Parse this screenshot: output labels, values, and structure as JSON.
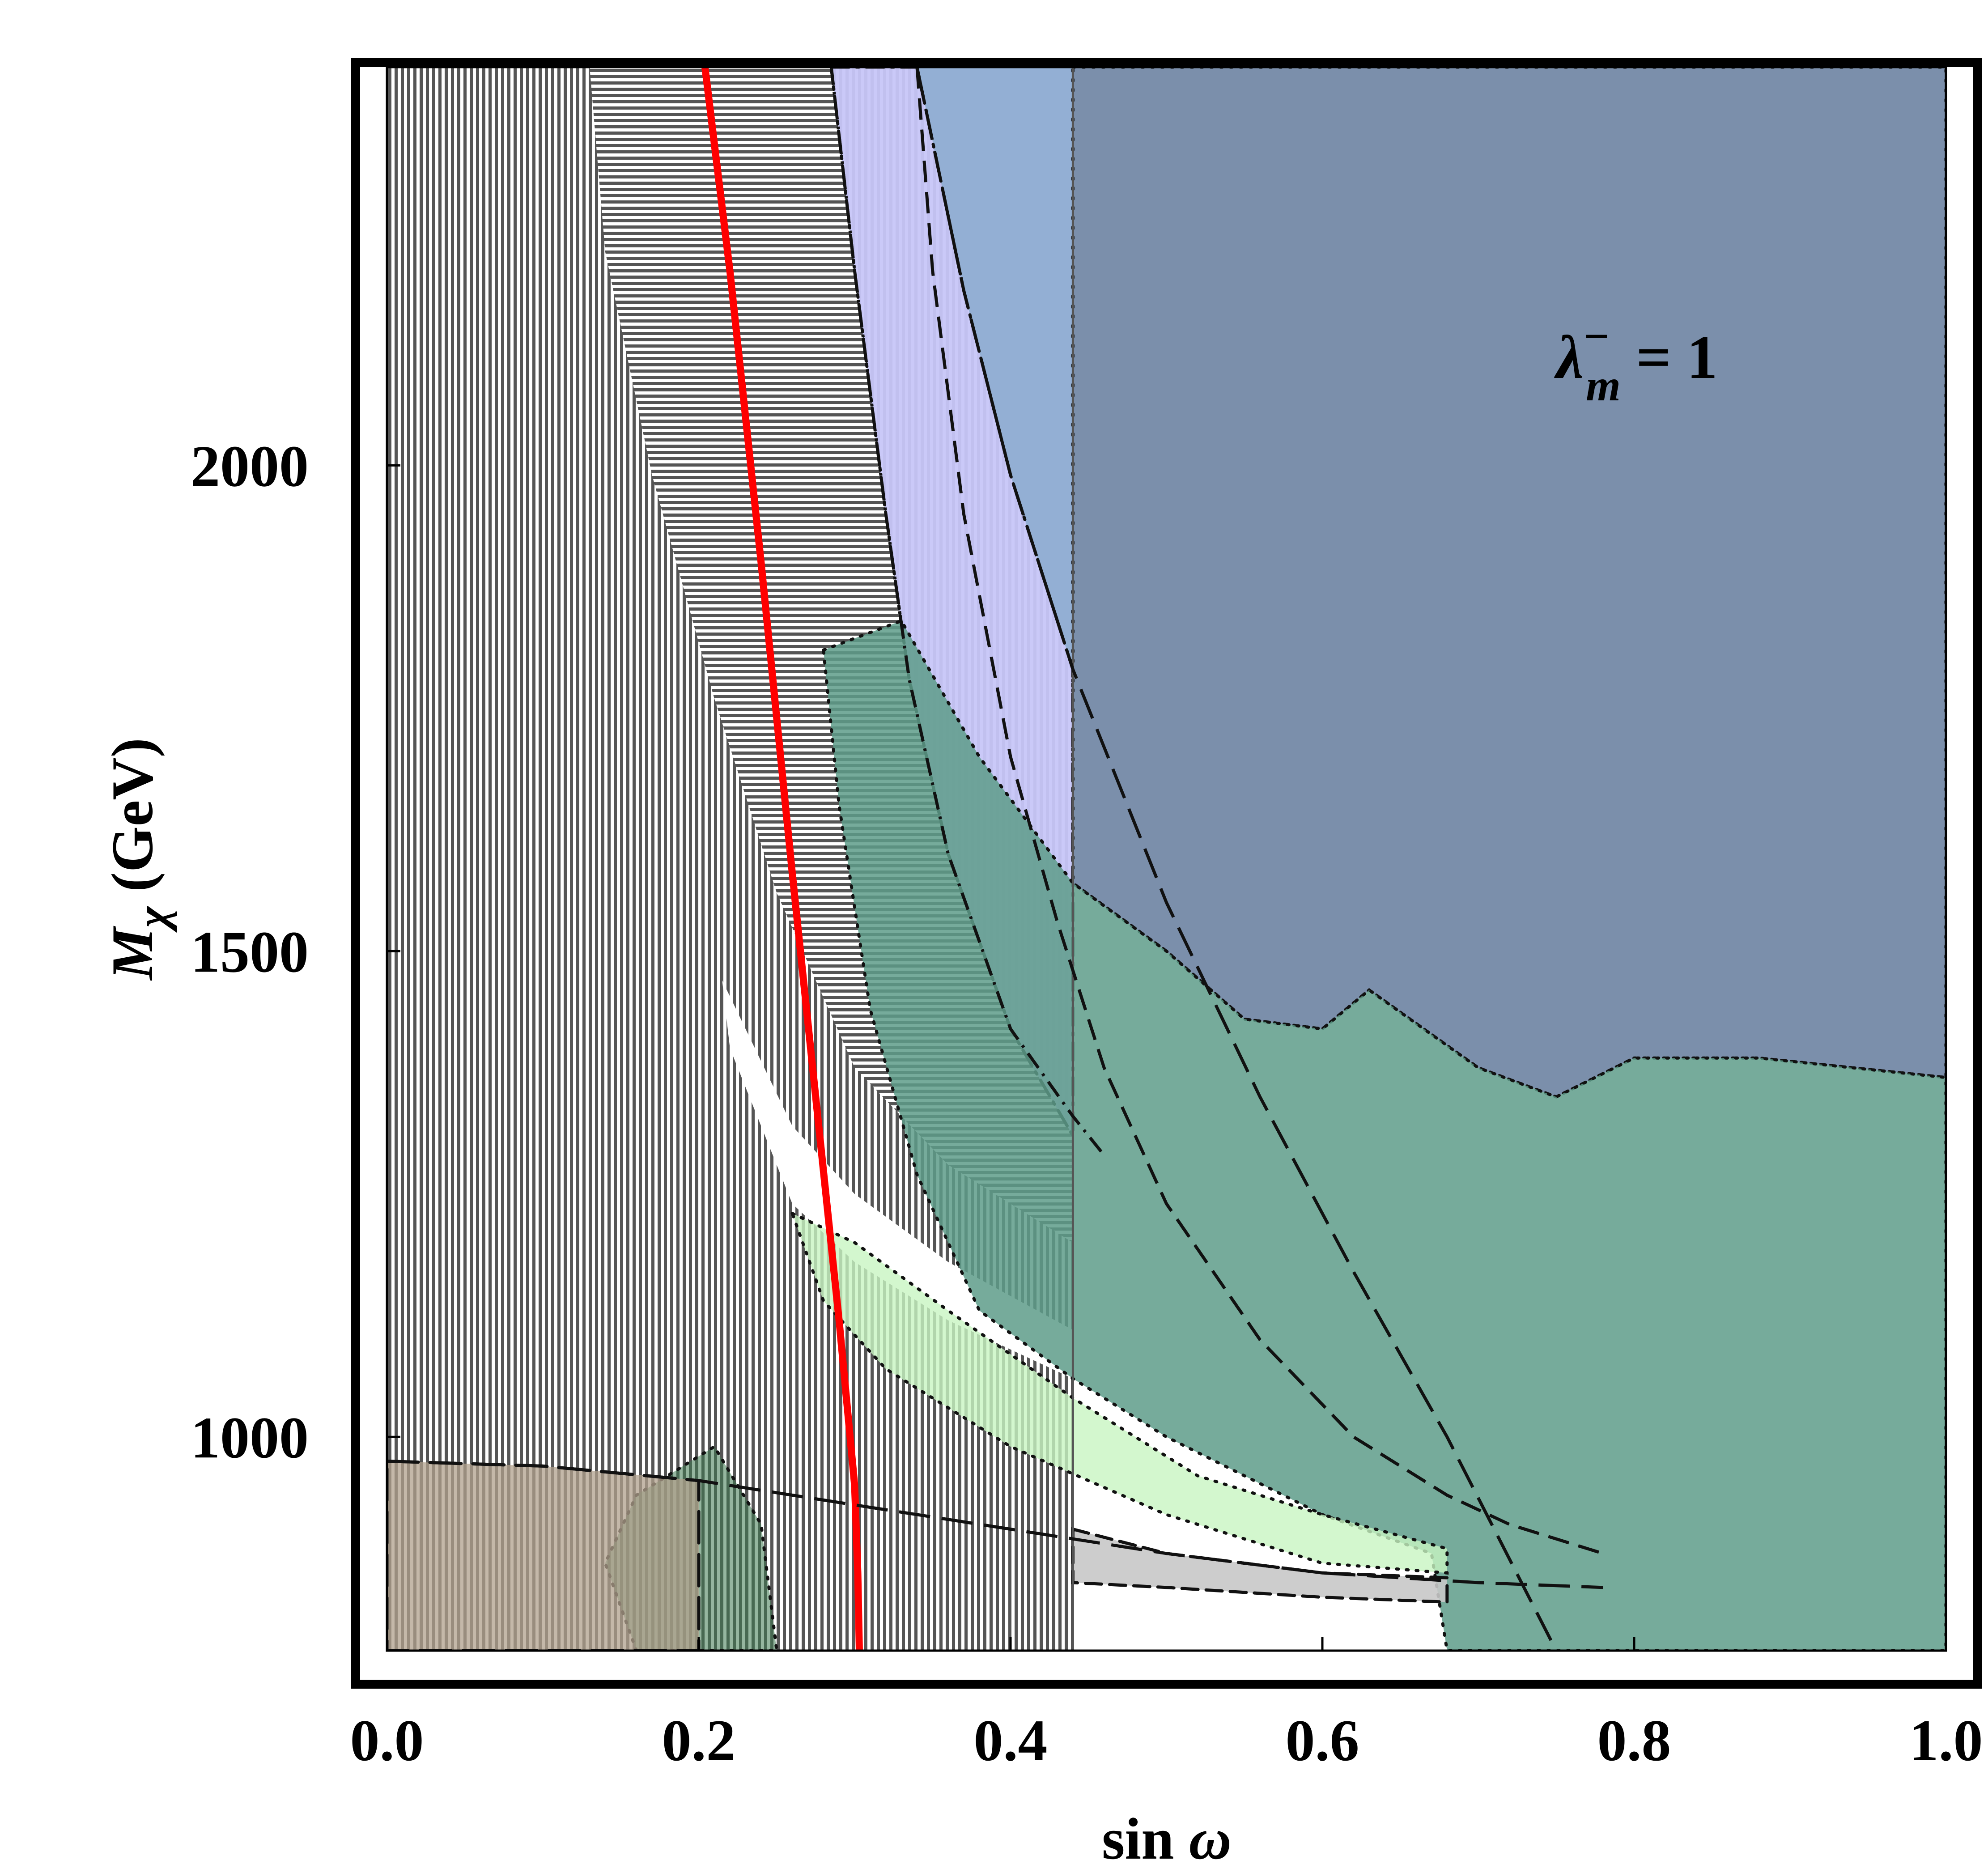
{
  "chart_data": {
    "type": "area",
    "title": "",
    "xlabel_main": "sin ",
    "xlabel_sym": "ω",
    "ylabel_main": "M",
    "ylabel_sub": "χ",
    "ylabel_unit": " (GeV)",
    "xlim": [
      0.0,
      1.0
    ],
    "ylim": [
      780,
      2410
    ],
    "x_ticks": [
      "0.0",
      "0.2",
      "0.4",
      "0.6",
      "0.8",
      "1.0"
    ],
    "x_tick_values": [
      0.0,
      0.2,
      0.4,
      0.6,
      0.8,
      1.0
    ],
    "y_ticks": [
      "1000",
      "1500",
      "2000"
    ],
    "y_tick_values": [
      1000,
      1500,
      2000
    ],
    "annotation": {
      "lambda": "λ",
      "sup": "−",
      "sub": "m",
      "rest": " = 1",
      "x": 0.75,
      "y": 2090
    },
    "grid": false,
    "legend": "none",
    "colors": {
      "hatch": "#555555",
      "blue_region": "#7b8fab",
      "light_blue": "#93afd4",
      "lavender": "#c7c6f8",
      "light_green": "#c8f5c2",
      "green_region": "#5e9c89",
      "dark_green": "#3e7a50",
      "brown": "#b0a08c",
      "gray": "#c8c8c8",
      "red_curve": "#ff0000"
    },
    "series": [
      {
        "id": "red-curve",
        "style": "solid-red",
        "points": [
          [
            0.204,
            2410
          ],
          [
            0.22,
            2200
          ],
          [
            0.24,
            1900
          ],
          [
            0.26,
            1580
          ],
          [
            0.275,
            1350
          ],
          [
            0.29,
            1120
          ],
          [
            0.3,
            950
          ],
          [
            0.302,
            860
          ],
          [
            0.303,
            780
          ]
        ]
      },
      {
        "id": "long-dash-curve",
        "style": "long-dash",
        "points": [
          [
            0.34,
            2410
          ],
          [
            0.37,
            2180
          ],
          [
            0.4,
            1990
          ],
          [
            0.44,
            1790
          ],
          [
            0.5,
            1550
          ],
          [
            0.56,
            1350
          ],
          [
            0.62,
            1170
          ],
          [
            0.68,
            1000
          ],
          [
            0.75,
            780
          ]
        ]
      },
      {
        "id": "mid-dash-curve",
        "style": "medium-dash",
        "points": [
          [
            0.34,
            2410
          ],
          [
            0.35,
            2200
          ],
          [
            0.37,
            1950
          ],
          [
            0.4,
            1700
          ],
          [
            0.43,
            1530
          ],
          [
            0.46,
            1380
          ],
          [
            0.5,
            1240
          ],
          [
            0.56,
            1100
          ],
          [
            0.62,
            1000
          ],
          [
            0.68,
            940
          ],
          [
            0.72,
            910
          ],
          [
            0.78,
            880
          ]
        ]
      },
      {
        "id": "dash-dot-curve",
        "style": "dash-dot",
        "points": [
          [
            0.285,
            2410
          ],
          [
            0.3,
            2200
          ],
          [
            0.32,
            1950
          ],
          [
            0.335,
            1780
          ],
          [
            0.36,
            1600
          ],
          [
            0.4,
            1420
          ],
          [
            0.44,
            1330
          ],
          [
            0.46,
            1290
          ]
        ]
      },
      {
        "id": "long-dash-lower",
        "style": "long-dash",
        "points": [
          [
            0.0,
            975
          ],
          [
            0.1,
            970
          ],
          [
            0.2,
            955
          ],
          [
            0.3,
            930
          ],
          [
            0.4,
            905
          ],
          [
            0.5,
            880
          ],
          [
            0.6,
            860
          ],
          [
            0.7,
            850
          ],
          [
            0.78,
            845
          ]
        ]
      }
    ],
    "regions": [
      {
        "id": "blue-region",
        "color": "blue_region",
        "boundary": "dotted",
        "points": [
          [
            0.44,
            2410
          ],
          [
            1.0,
            2410
          ],
          [
            1.0,
            1370
          ],
          [
            0.88,
            1390
          ],
          [
            0.8,
            1390
          ],
          [
            0.75,
            1350
          ],
          [
            0.7,
            1380
          ],
          [
            0.63,
            1460
          ],
          [
            0.6,
            1420
          ],
          [
            0.55,
            1430
          ],
          [
            0.5,
            1500
          ],
          [
            0.44,
            1570
          ]
        ]
      },
      {
        "id": "light-blue-region",
        "color": "light_blue",
        "boundary": "none",
        "points": [
          [
            0.34,
            2410
          ],
          [
            0.44,
            2410
          ],
          [
            0.44,
            1780
          ],
          [
            0.4,
            1990
          ],
          [
            0.37,
            2180
          ]
        ]
      },
      {
        "id": "lavender-region",
        "color": "lavender",
        "boundary": "dash-dot",
        "points": [
          [
            0.285,
            2410
          ],
          [
            0.34,
            2410
          ],
          [
            0.37,
            2180
          ],
          [
            0.4,
            1990
          ],
          [
            0.44,
            1790
          ],
          [
            0.44,
            1310
          ],
          [
            0.4,
            1420
          ],
          [
            0.36,
            1600
          ],
          [
            0.335,
            1780
          ],
          [
            0.32,
            1950
          ],
          [
            0.3,
            2200
          ]
        ]
      },
      {
        "id": "green-region",
        "color": "green_region",
        "boundary": "dotted",
        "points": [
          [
            0.28,
            1810
          ],
          [
            0.33,
            1840
          ],
          [
            0.38,
            1700
          ],
          [
            0.44,
            1570
          ],
          [
            0.5,
            1500
          ],
          [
            0.55,
            1430
          ],
          [
            0.6,
            1420
          ],
          [
            0.63,
            1460
          ],
          [
            0.7,
            1380
          ],
          [
            0.75,
            1350
          ],
          [
            0.8,
            1390
          ],
          [
            0.88,
            1390
          ],
          [
            1.0,
            1370
          ],
          [
            1.0,
            780
          ],
          [
            0.68,
            780
          ],
          [
            0.67,
            880
          ],
          [
            0.6,
            920
          ],
          [
            0.5,
            1000
          ],
          [
            0.44,
            1060
          ],
          [
            0.38,
            1130
          ],
          [
            0.34,
            1270
          ],
          [
            0.31,
            1440
          ],
          [
            0.29,
            1650
          ]
        ]
      },
      {
        "id": "light-green-region",
        "color": "light_green",
        "boundary": "dotted",
        "points": [
          [
            0.26,
            1230
          ],
          [
            0.3,
            1200
          ],
          [
            0.36,
            1130
          ],
          [
            0.44,
            1040
          ],
          [
            0.52,
            960
          ],
          [
            0.6,
            920
          ],
          [
            0.68,
            885
          ],
          [
            0.68,
            860
          ],
          [
            0.6,
            870
          ],
          [
            0.5,
            920
          ],
          [
            0.4,
            990
          ],
          [
            0.32,
            1070
          ],
          [
            0.28,
            1140
          ]
        ]
      },
      {
        "id": "brown-region",
        "color": "brown",
        "boundary": "long-dash",
        "points": [
          [
            0.0,
            975
          ],
          [
            0.1,
            970
          ],
          [
            0.2,
            955
          ],
          [
            0.2,
            780
          ],
          [
            0.0,
            780
          ]
        ]
      },
      {
        "id": "gray-band",
        "color": "gray",
        "boundary": "dash",
        "points": [
          [
            0.44,
            905
          ],
          [
            0.5,
            880
          ],
          [
            0.6,
            860
          ],
          [
            0.68,
            855
          ],
          [
            0.68,
            830
          ],
          [
            0.6,
            835
          ],
          [
            0.5,
            845
          ],
          [
            0.44,
            850
          ]
        ]
      },
      {
        "id": "dark-green-lower",
        "color": "dark_green",
        "boundary": "dotted",
        "points": [
          [
            0.16,
            780
          ],
          [
            0.14,
            870
          ],
          [
            0.16,
            940
          ],
          [
            0.21,
            990
          ],
          [
            0.24,
            910
          ],
          [
            0.25,
            780
          ]
        ]
      }
    ]
  }
}
